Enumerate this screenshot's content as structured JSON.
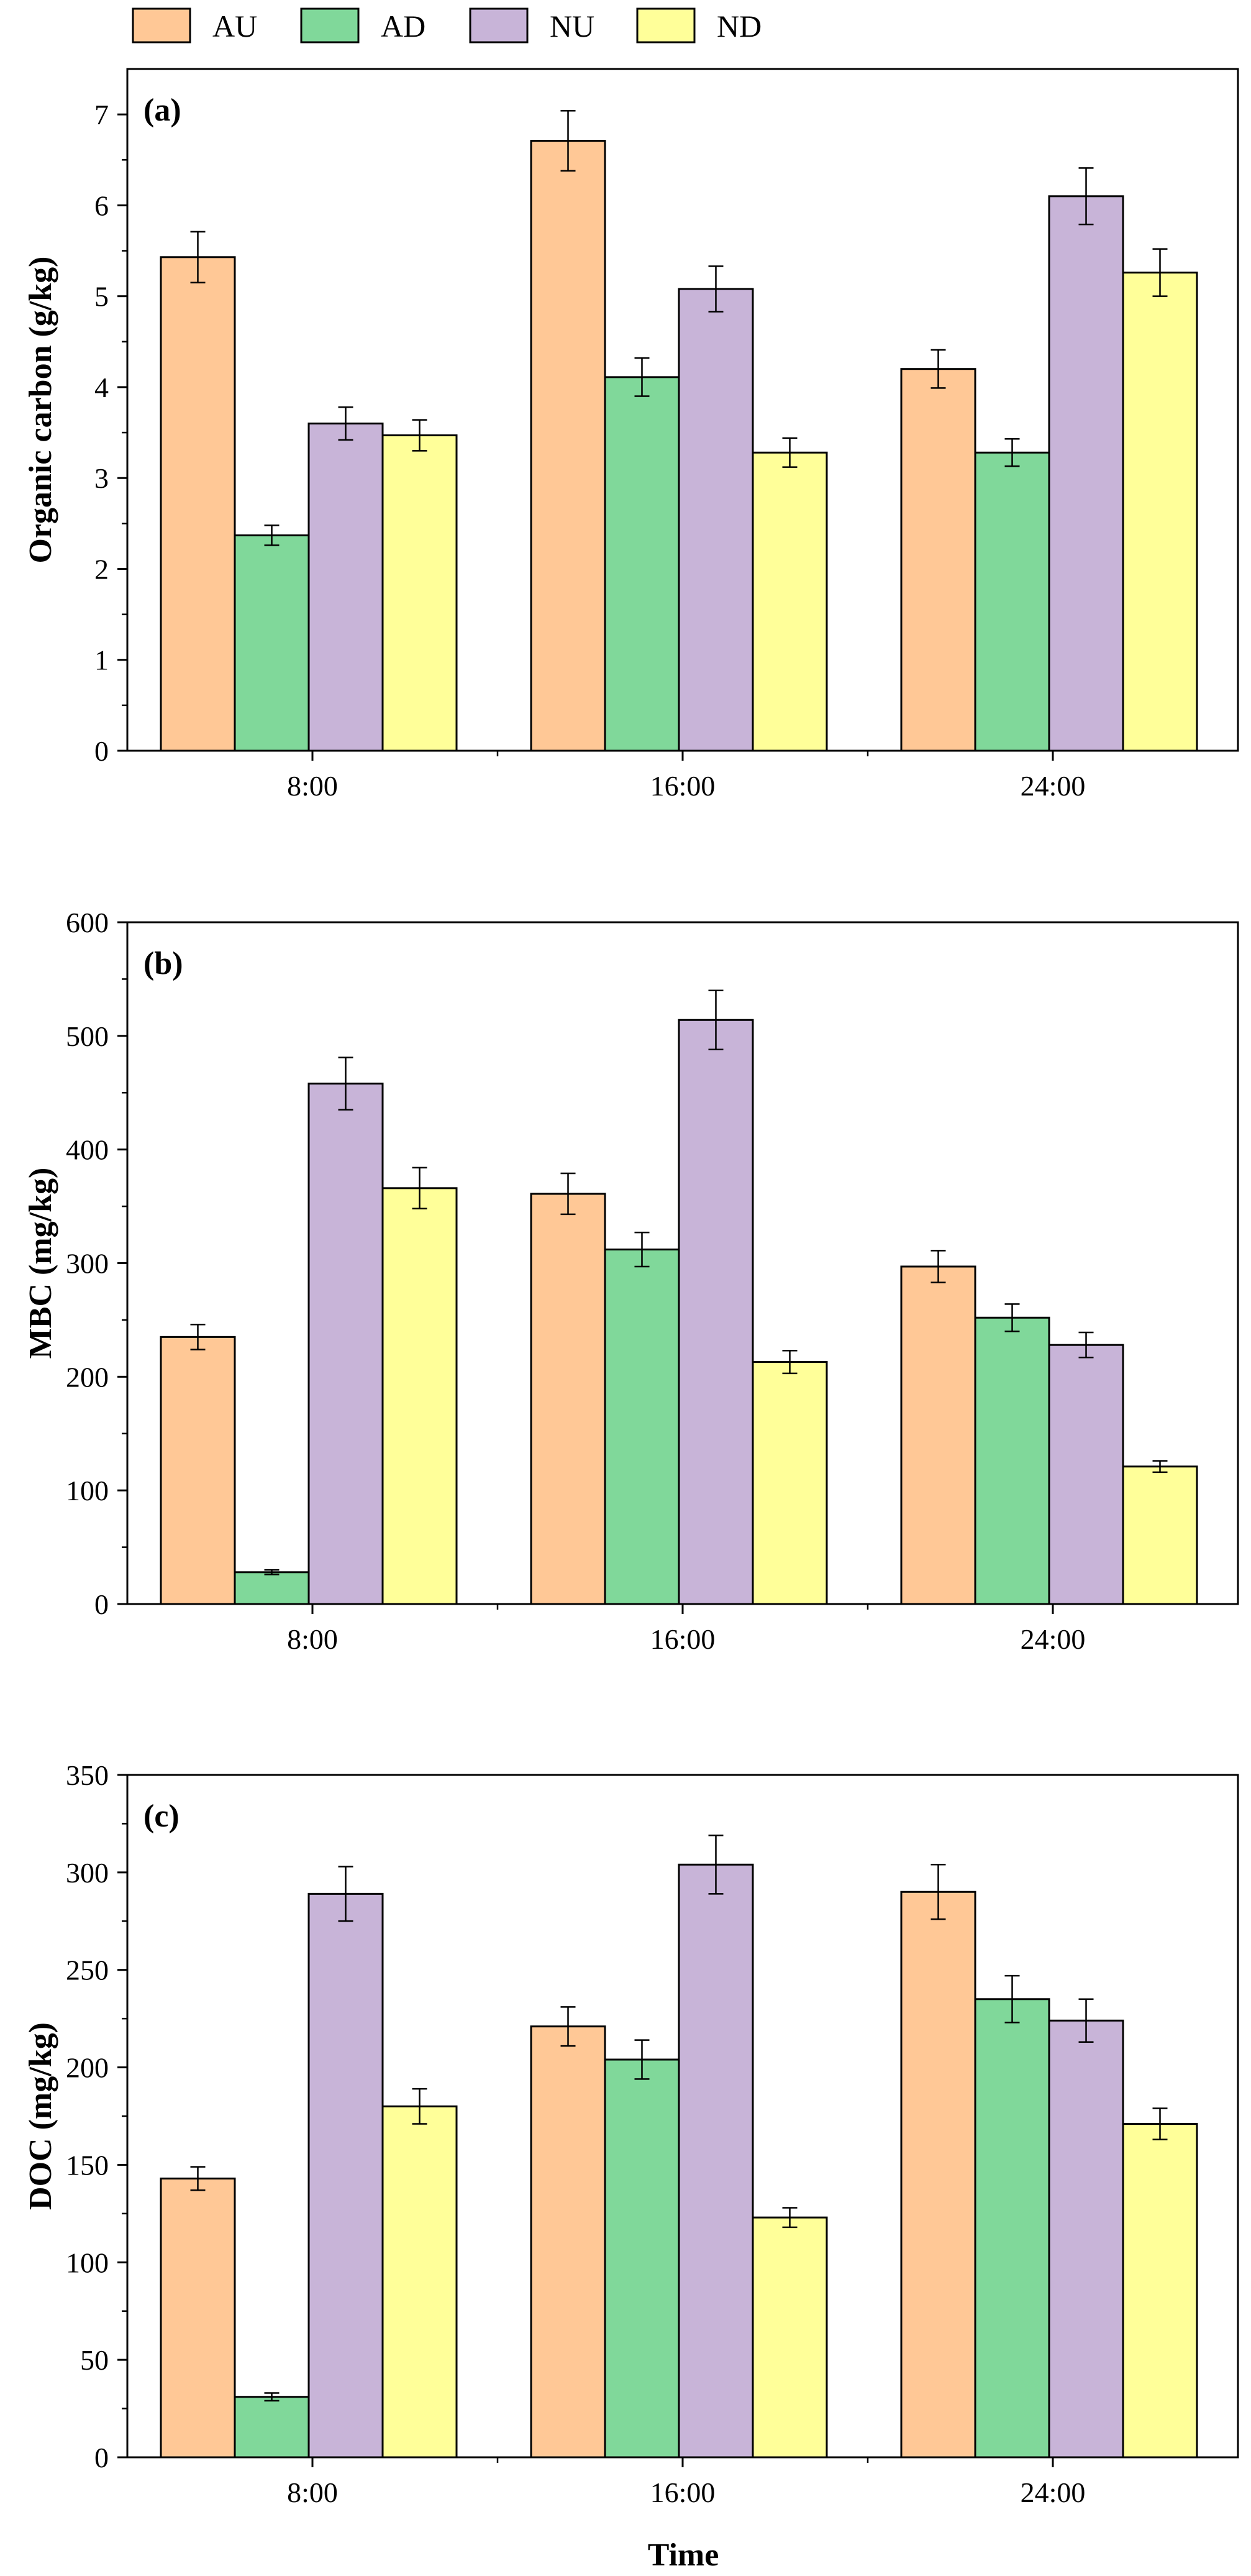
{
  "legend": [
    {
      "label": "AU",
      "color": "#FFC896"
    },
    {
      "label": "AD",
      "color": "#80D89A"
    },
    {
      "label": "NU",
      "color": "#C8B4D8"
    },
    {
      "label": "ND",
      "color": "#FFFF99"
    }
  ],
  "xlabel": "Time",
  "chart_data": [
    {
      "type": "bar",
      "panel_label": "(a)",
      "ylabel": "Organic carbon (g/kg)",
      "categories": [
        "8:00",
        "16:00",
        "24:00"
      ],
      "ylim": [
        0,
        7.5
      ],
      "yticks": [
        0,
        1,
        2,
        3,
        4,
        5,
        6,
        7
      ],
      "ytick_labels": [
        "0",
        "1",
        "2",
        "3",
        "4",
        "5",
        "6",
        "7"
      ],
      "minor_step": 0.5,
      "series": [
        {
          "name": "AU",
          "values": [
            5.43,
            6.71,
            4.2
          ],
          "errors": [
            0.28,
            0.33,
            0.21
          ]
        },
        {
          "name": "AD",
          "values": [
            2.37,
            4.11,
            3.28
          ],
          "errors": [
            0.11,
            0.21,
            0.15
          ]
        },
        {
          "name": "NU",
          "values": [
            3.6,
            5.08,
            6.1
          ],
          "errors": [
            0.18,
            0.25,
            0.31
          ]
        },
        {
          "name": "ND",
          "values": [
            3.47,
            3.28,
            5.26
          ],
          "errors": [
            0.17,
            0.16,
            0.26
          ]
        }
      ]
    },
    {
      "type": "bar",
      "panel_label": "(b)",
      "ylabel": "MBC (mg/kg)",
      "categories": [
        "8:00",
        "16:00",
        "24:00"
      ],
      "ylim": [
        0,
        600
      ],
      "yticks": [
        0,
        100,
        200,
        300,
        400,
        500,
        600
      ],
      "ytick_labels": [
        "0",
        "100",
        "200",
        "300",
        "400",
        "500",
        "600"
      ],
      "minor_step": 50,
      "series": [
        {
          "name": "AU",
          "values": [
            235,
            361,
            297
          ],
          "errors": [
            11,
            18,
            14
          ]
        },
        {
          "name": "AD",
          "values": [
            28,
            312,
            252
          ],
          "errors": [
            2,
            15,
            12
          ]
        },
        {
          "name": "NU",
          "values": [
            458,
            514,
            228
          ],
          "errors": [
            23,
            26,
            11
          ]
        },
        {
          "name": "ND",
          "values": [
            366,
            213,
            121
          ],
          "errors": [
            18,
            10,
            5
          ]
        }
      ]
    },
    {
      "type": "bar",
      "panel_label": "(c)",
      "ylabel": "DOC (mg/kg)",
      "categories": [
        "8:00",
        "16:00",
        "24:00"
      ],
      "ylim": [
        0,
        350
      ],
      "yticks": [
        0,
        50,
        100,
        150,
        200,
        250,
        300,
        350
      ],
      "ytick_labels": [
        "0",
        "50",
        "100",
        "150",
        "200",
        "250",
        "300",
        "350"
      ],
      "minor_step": 25,
      "series": [
        {
          "name": "AU",
          "values": [
            143,
            221,
            290
          ],
          "errors": [
            6,
            10,
            14
          ]
        },
        {
          "name": "AD",
          "values": [
            31,
            204,
            235
          ],
          "errors": [
            2,
            10,
            12
          ]
        },
        {
          "name": "NU",
          "values": [
            289,
            304,
            224
          ],
          "errors": [
            14,
            15,
            11
          ]
        },
        {
          "name": "ND",
          "values": [
            180,
            123,
            171
          ],
          "errors": [
            9,
            5,
            8
          ]
        }
      ]
    }
  ]
}
